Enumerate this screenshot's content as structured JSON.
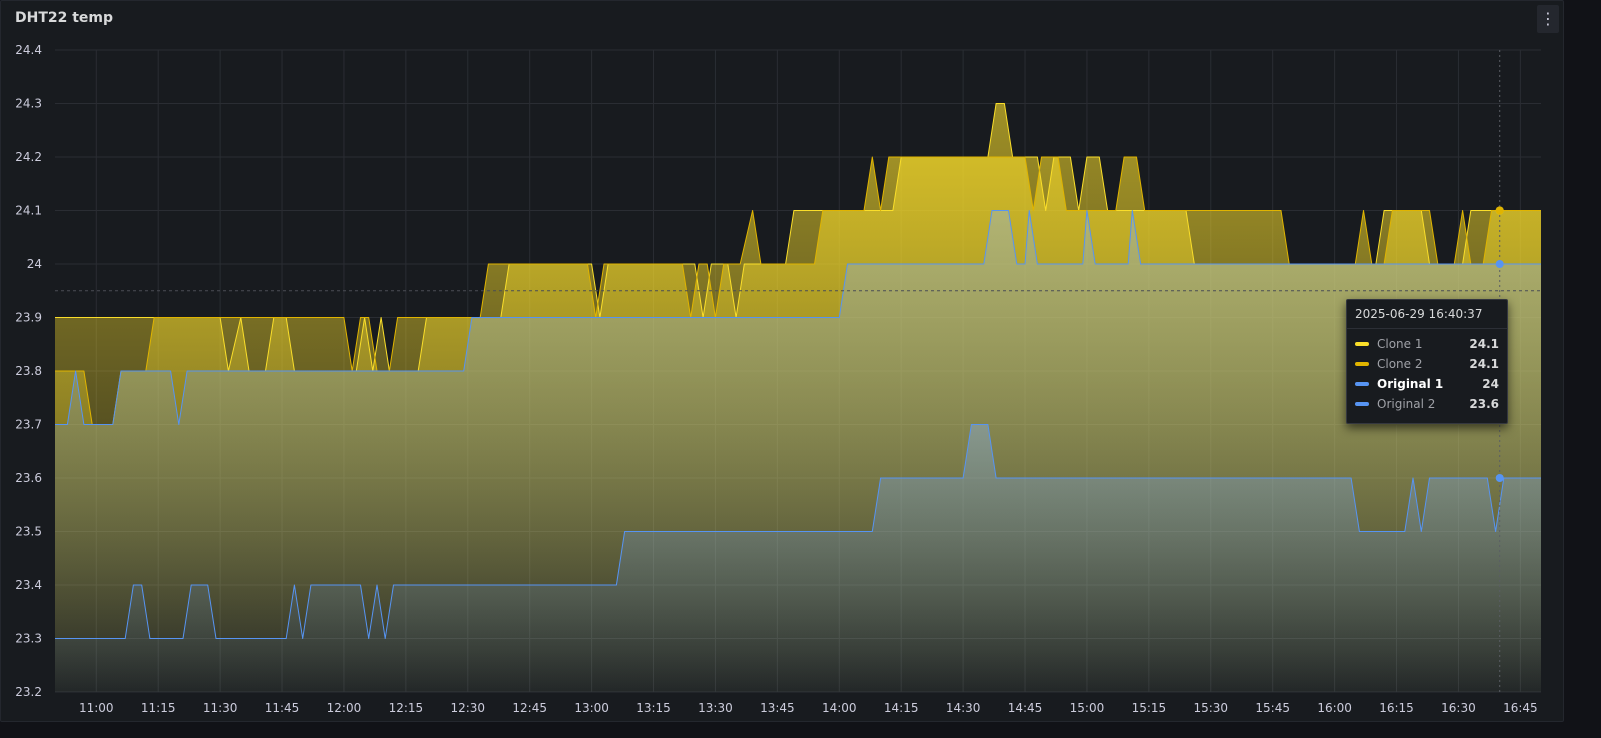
{
  "panel": {
    "title": "DHT22 temp",
    "menu_icon": "kebab-menu-icon"
  },
  "tooltip": {
    "time": "2025-06-29 16:40:37",
    "rows": [
      {
        "name": "Clone 1",
        "value": "24.1",
        "color": "#fade2a",
        "active": false
      },
      {
        "name": "Clone 2",
        "value": "24.1",
        "color": "#e0b400",
        "active": false
      },
      {
        "name": "Original 1",
        "value": "24",
        "color": "#5794f2",
        "active": true
      },
      {
        "name": "Original 2",
        "value": "23.6",
        "color": "#5794f2",
        "active": false
      }
    ]
  },
  "chart_data": {
    "type": "area",
    "title": "DHT22 temp",
    "x_unit": "time of day (2025-06-29)",
    "xlim": [
      "10:50",
      "16:50"
    ],
    "ylim": [
      23.2,
      24.4
    ],
    "y_ticks": [
      "23.2",
      "23.3",
      "23.4",
      "23.5",
      "23.6",
      "23.7",
      "23.8",
      "23.9",
      "24",
      "24.1",
      "24.2",
      "24.3",
      "24.4"
    ],
    "x_ticks": [
      "11:00",
      "11:15",
      "11:30",
      "11:45",
      "12:00",
      "12:15",
      "12:30",
      "12:45",
      "13:00",
      "13:15",
      "13:30",
      "13:45",
      "14:00",
      "14:15",
      "14:30",
      "14:45",
      "15:00",
      "15:15",
      "15:30",
      "15:45",
      "16:00",
      "16:15",
      "16:30",
      "16:45"
    ],
    "grid": true,
    "hover_time": "16:40",
    "threshold_line": 23.95,
    "series": [
      {
        "name": "Clone 1",
        "color": "#fade2a",
        "points": [
          [
            "10:50",
            23.9
          ],
          [
            "11:30",
            23.9
          ],
          [
            "11:32",
            23.8
          ],
          [
            "11:35",
            23.9
          ],
          [
            "11:37",
            23.8
          ],
          [
            "11:41",
            23.8
          ],
          [
            "11:43",
            23.9
          ],
          [
            "11:46",
            23.9
          ],
          [
            "11:48",
            23.8
          ],
          [
            "12:03",
            23.8
          ],
          [
            "12:05",
            23.9
          ],
          [
            "12:07",
            23.8
          ],
          [
            "12:09",
            23.9
          ],
          [
            "12:11",
            23.8
          ],
          [
            "12:18",
            23.8
          ],
          [
            "12:20",
            23.9
          ],
          [
            "12:38",
            23.9
          ],
          [
            "12:40",
            24.0
          ],
          [
            "12:58",
            24.0
          ],
          [
            "13:00",
            24.0
          ],
          [
            "13:02",
            23.9
          ],
          [
            "13:04",
            24.0
          ],
          [
            "13:25",
            24.0
          ],
          [
            "13:27",
            23.9
          ],
          [
            "13:29",
            24.0
          ],
          [
            "13:33",
            24.0
          ],
          [
            "13:35",
            23.9
          ],
          [
            "13:37",
            24.0
          ],
          [
            "13:47",
            24.0
          ],
          [
            "13:49",
            24.1
          ],
          [
            "14:13",
            24.1
          ],
          [
            "14:15",
            24.2
          ],
          [
            "14:36",
            24.2
          ],
          [
            "14:38",
            24.3
          ],
          [
            "14:40",
            24.3
          ],
          [
            "14:42",
            24.2
          ],
          [
            "14:48",
            24.2
          ],
          [
            "14:50",
            24.1
          ],
          [
            "14:52",
            24.2
          ],
          [
            "14:56",
            24.2
          ],
          [
            "14:58",
            24.1
          ],
          [
            "15:00",
            24.2
          ],
          [
            "15:03",
            24.2
          ],
          [
            "15:05",
            24.1
          ],
          [
            "15:24",
            24.1
          ],
          [
            "15:26",
            24.0
          ],
          [
            "16:10",
            24.0
          ],
          [
            "16:12",
            24.1
          ],
          [
            "16:21",
            24.1
          ],
          [
            "16:23",
            24.0
          ],
          [
            "16:31",
            24.0
          ],
          [
            "16:33",
            24.1
          ],
          [
            "16:50",
            24.1
          ]
        ]
      },
      {
        "name": "Clone 2",
        "color": "#e0b400",
        "points": [
          [
            "10:50",
            23.8
          ],
          [
            "10:57",
            23.8
          ],
          [
            "10:59",
            23.7
          ],
          [
            "11:04",
            23.7
          ],
          [
            "11:06",
            23.8
          ],
          [
            "11:12",
            23.8
          ],
          [
            "11:14",
            23.9
          ],
          [
            "11:29",
            23.9
          ],
          [
            "11:31",
            23.9
          ],
          [
            "11:58",
            23.9
          ],
          [
            "12:00",
            23.9
          ],
          [
            "12:02",
            23.8
          ],
          [
            "12:04",
            23.9
          ],
          [
            "12:06",
            23.9
          ],
          [
            "12:08",
            23.8
          ],
          [
            "12:11",
            23.8
          ],
          [
            "12:13",
            23.9
          ],
          [
            "12:33",
            23.9
          ],
          [
            "12:35",
            24.0
          ],
          [
            "12:57",
            24.0
          ],
          [
            "12:59",
            24.0
          ],
          [
            "13:01",
            23.9
          ],
          [
            "13:03",
            24.0
          ],
          [
            "13:22",
            24.0
          ],
          [
            "13:24",
            23.9
          ],
          [
            "13:26",
            24.0
          ],
          [
            "13:28",
            24.0
          ],
          [
            "13:30",
            23.9
          ],
          [
            "13:32",
            24.0
          ],
          [
            "13:36",
            24.0
          ],
          [
            "13:39",
            24.1
          ],
          [
            "13:41",
            24.0
          ],
          [
            "13:54",
            24.0
          ],
          [
            "13:56",
            24.1
          ],
          [
            "14:06",
            24.1
          ],
          [
            "14:08",
            24.2
          ],
          [
            "14:10",
            24.1
          ],
          [
            "14:12",
            24.2
          ],
          [
            "14:45",
            24.2
          ],
          [
            "14:47",
            24.1
          ],
          [
            "14:49",
            24.2
          ],
          [
            "14:53",
            24.2
          ],
          [
            "14:55",
            24.1
          ],
          [
            "15:07",
            24.1
          ],
          [
            "15:09",
            24.2
          ],
          [
            "15:12",
            24.2
          ],
          [
            "15:14",
            24.1
          ],
          [
            "15:47",
            24.1
          ],
          [
            "15:49",
            24.0
          ],
          [
            "16:05",
            24.0
          ],
          [
            "16:07",
            24.1
          ],
          [
            "16:09",
            24.0
          ],
          [
            "16:12",
            24.0
          ],
          [
            "16:14",
            24.1
          ],
          [
            "16:23",
            24.1
          ],
          [
            "16:25",
            24.0
          ],
          [
            "16:29",
            24.0
          ],
          [
            "16:31",
            24.1
          ],
          [
            "16:33",
            24.0
          ],
          [
            "16:36",
            24.0
          ],
          [
            "16:38",
            24.1
          ],
          [
            "16:50",
            24.1
          ]
        ]
      },
      {
        "name": "Original 1",
        "color": "#5794f2",
        "points": [
          [
            "10:50",
            23.7
          ],
          [
            "10:53",
            23.7
          ],
          [
            "10:55",
            23.8
          ],
          [
            "10:57",
            23.7
          ],
          [
            "11:04",
            23.7
          ],
          [
            "11:06",
            23.8
          ],
          [
            "11:18",
            23.8
          ],
          [
            "11:20",
            23.7
          ],
          [
            "11:22",
            23.8
          ],
          [
            "12:29",
            23.8
          ],
          [
            "12:31",
            23.9
          ],
          [
            "14:00",
            23.9
          ],
          [
            "14:02",
            24.0
          ],
          [
            "14:35",
            24.0
          ],
          [
            "14:37",
            24.1
          ],
          [
            "14:41",
            24.1
          ],
          [
            "14:43",
            24.0
          ],
          [
            "14:45",
            24.0
          ],
          [
            "14:46",
            24.1
          ],
          [
            "14:48",
            24.0
          ],
          [
            "14:59",
            24.0
          ],
          [
            "15:00",
            24.1
          ],
          [
            "15:02",
            24.0
          ],
          [
            "15:10",
            24.0
          ],
          [
            "15:11",
            24.1
          ],
          [
            "15:13",
            24.0
          ],
          [
            "16:50",
            24.0
          ]
        ]
      },
      {
        "name": "Original 2",
        "color": "#5794f2",
        "points": [
          [
            "10:50",
            23.3
          ],
          [
            "11:07",
            23.3
          ],
          [
            "11:09",
            23.4
          ],
          [
            "11:11",
            23.4
          ],
          [
            "11:13",
            23.3
          ],
          [
            "11:21",
            23.3
          ],
          [
            "11:23",
            23.4
          ],
          [
            "11:27",
            23.4
          ],
          [
            "11:29",
            23.3
          ],
          [
            "11:46",
            23.3
          ],
          [
            "11:48",
            23.4
          ],
          [
            "11:50",
            23.3
          ],
          [
            "11:52",
            23.4
          ],
          [
            "12:04",
            23.4
          ],
          [
            "12:06",
            23.3
          ],
          [
            "12:08",
            23.4
          ],
          [
            "12:10",
            23.3
          ],
          [
            "12:12",
            23.4
          ],
          [
            "13:06",
            23.4
          ],
          [
            "13:08",
            23.5
          ],
          [
            "14:08",
            23.5
          ],
          [
            "14:10",
            23.6
          ],
          [
            "14:30",
            23.6
          ],
          [
            "14:32",
            23.7
          ],
          [
            "14:36",
            23.7
          ],
          [
            "14:38",
            23.6
          ],
          [
            "16:04",
            23.6
          ],
          [
            "16:06",
            23.5
          ],
          [
            "16:17",
            23.5
          ],
          [
            "16:19",
            23.6
          ],
          [
            "16:21",
            23.5
          ],
          [
            "16:23",
            23.6
          ],
          [
            "16:37",
            23.6
          ],
          [
            "16:39",
            23.5
          ],
          [
            "16:41",
            23.6
          ],
          [
            "16:50",
            23.6
          ]
        ]
      }
    ]
  }
}
